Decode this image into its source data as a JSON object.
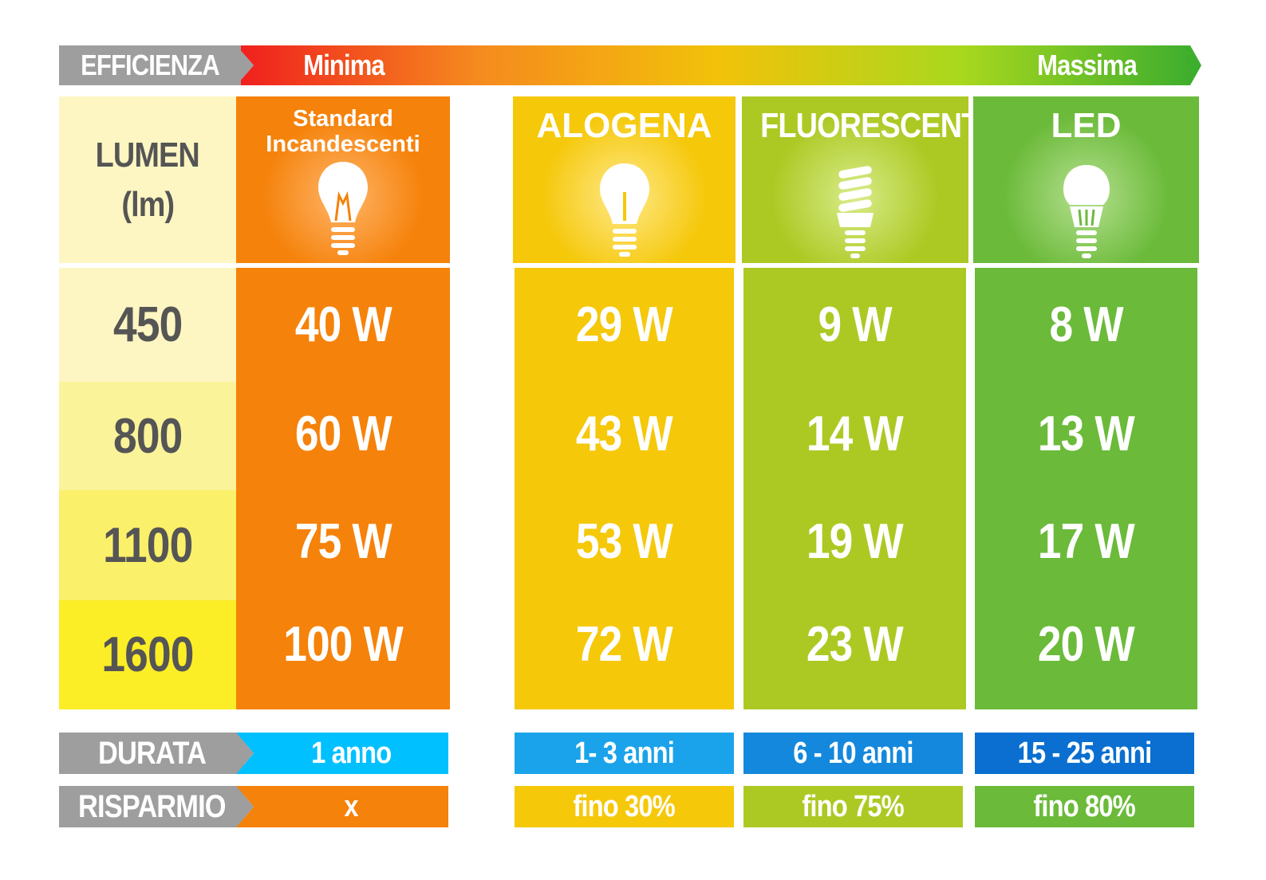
{
  "efficiency": {
    "label": "EFFICIENZA",
    "min": "Minima",
    "max": "Massima"
  },
  "lumen": {
    "header_line1": "LUMEN",
    "header_line2": "(lm)",
    "values": [
      "450",
      "800",
      "1100",
      "1600"
    ]
  },
  "columns": [
    {
      "key": "incandescent",
      "title_line1": "Standard",
      "title_line2": "Incandescenti",
      "color": "#f5820a",
      "icon": "incandescent-bulb-icon",
      "watts": [
        "40 W",
        "60 W",
        "75 W",
        "100 W"
      ],
      "durata": "1 anno",
      "risparmio": "x"
    },
    {
      "key": "halogen",
      "title": "ALOGENA",
      "color": "#f5c80a",
      "icon": "halogen-bulb-icon",
      "watts": [
        "29 W",
        "43 W",
        "53 W",
        "72 W"
      ],
      "durata": "1- 3 anni",
      "risparmio": "fino 30%"
    },
    {
      "key": "fluorescent",
      "title": "FLUORESCENTI",
      "color": "#acc923",
      "icon": "cfl-bulb-icon",
      "watts": [
        "9 W",
        "14 W",
        "19 W",
        "23 W"
      ],
      "durata": "6 - 10 anni",
      "risparmio": "fino 75%"
    },
    {
      "key": "led",
      "title": "LED",
      "color": "#6bba3a",
      "icon": "led-bulb-icon",
      "watts": [
        "8 W",
        "13 W",
        "17 W",
        "20 W"
      ],
      "durata": "15 - 25 anni",
      "risparmio": "fino 80%"
    }
  ],
  "rows": {
    "durata_label": "DURATA",
    "risparmio_label": "RISPARMIO"
  },
  "colors": {
    "lumen_shades": [
      "#fdf6c2",
      "#fbf39a",
      "#fbf06a",
      "#fbee26"
    ],
    "durata_shades": [
      "#00c0ff",
      "#1aa3ea",
      "#1488dc",
      "#0a6fd0"
    ],
    "label_gray": "#9e9e9e"
  }
}
